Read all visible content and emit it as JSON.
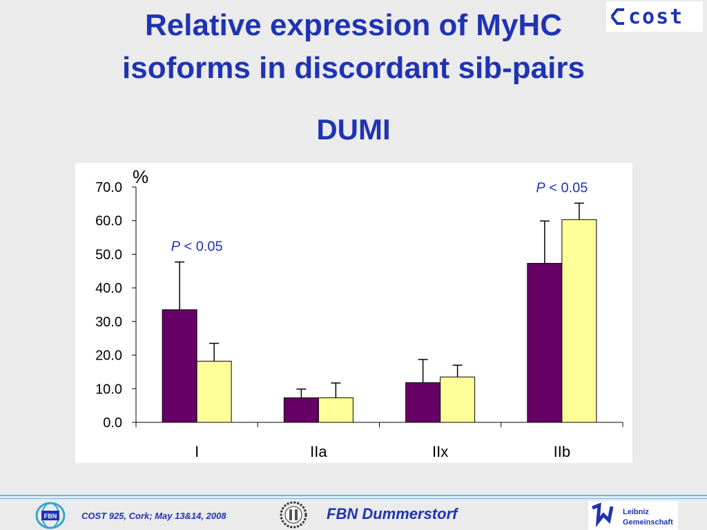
{
  "slide": {
    "title_line1": "Relative expression of MyHC",
    "title_line2": "isoforms in discordant sib-pairs",
    "subtitle": "DUMI"
  },
  "footer": {
    "left_text": "COST 925, Cork; May 13&14, 2008",
    "center_text": "FBN Dummerstorf",
    "fbn_badge": "FBN",
    "leibniz_line1": "Leibniz",
    "leibniz_line2": "Gemeinschaft",
    "cost_logo_text": "cost"
  },
  "colors": {
    "title": "#1f33b5",
    "series1": "#660066",
    "series2": "#ffff99"
  },
  "chart_data": {
    "type": "bar",
    "ylabel": "%",
    "categories": [
      "I",
      "IIa",
      "IIx",
      "IIb"
    ],
    "ylim": [
      0,
      70
    ],
    "yticks": [
      "0.0",
      "10.0",
      "20.0",
      "30.0",
      "40.0",
      "50.0",
      "60.0",
      "70.0"
    ],
    "series": [
      {
        "color": "#660066",
        "values": [
          33.5,
          7.3,
          11.8,
          47.3
        ],
        "errors": [
          14.2,
          2.6,
          6.9,
          12.6
        ]
      },
      {
        "color": "#ffff99",
        "values": [
          18.2,
          7.3,
          13.5,
          60.3
        ],
        "errors": [
          5.3,
          4.4,
          3.5,
          4.9
        ]
      }
    ],
    "annotations": [
      {
        "label_italic": "P",
        "label_rest": " < 0.05",
        "category": "I"
      },
      {
        "label_italic": "P",
        "label_rest": " < 0.05",
        "category": "IIb"
      }
    ]
  }
}
